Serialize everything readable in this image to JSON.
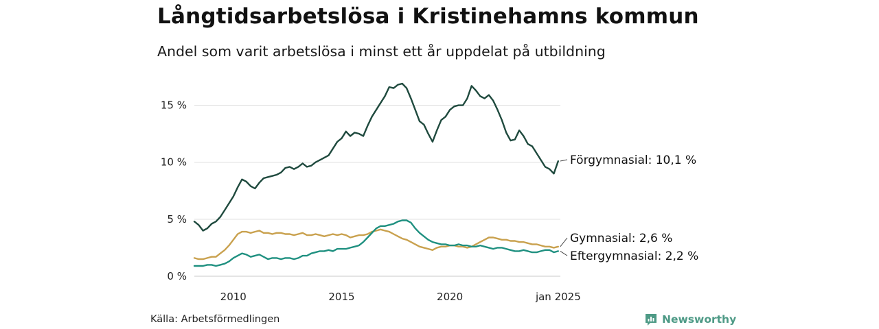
{
  "title": "Långtidsarbetslösa i Kristinehamns kommun",
  "subtitle": "Andel som varit arbetslösa i minst ett år uppdelat på utbildning",
  "source": "Källa: Arbetsförmedlingen",
  "brand": {
    "name": "Newsworthy",
    "icon": "newsworthy-logo-icon",
    "color": "#4e9a86"
  },
  "chart_data": {
    "type": "line",
    "title": "Långtidsarbetslösa i Kristinehamns kommun",
    "subtitle": "Andel som varit arbetslösa i minst ett år uppdelat på utbildning",
    "xlabel": "",
    "ylabel": "",
    "xlim": [
      2008.2,
      2025.1
    ],
    "ylim": [
      0,
      17.5
    ],
    "grid": true,
    "y_ticks": [
      0,
      5,
      10,
      15
    ],
    "y_tick_labels": [
      "0 %",
      "5 %",
      "10 %",
      "15 %"
    ],
    "x_ticks": [
      2010,
      2015,
      2020,
      2025.0
    ],
    "x_tick_labels": [
      "2010",
      "2015",
      "2020",
      "jan 2025"
    ],
    "series": [
      {
        "name": "Förgymnasial",
        "label": "Förgymnasial: 10,1 %",
        "color": "#1f4a3e",
        "points": [
          [
            2008.2,
            4.8
          ],
          [
            2008.4,
            4.5
          ],
          [
            2008.6,
            4.0
          ],
          [
            2008.8,
            4.2
          ],
          [
            2009.0,
            4.6
          ],
          [
            2009.2,
            4.8
          ],
          [
            2009.4,
            5.2
          ],
          [
            2009.6,
            5.8
          ],
          [
            2009.8,
            6.4
          ],
          [
            2010.0,
            7.0
          ],
          [
            2010.2,
            7.8
          ],
          [
            2010.4,
            8.5
          ],
          [
            2010.6,
            8.3
          ],
          [
            2010.8,
            7.9
          ],
          [
            2011.0,
            7.7
          ],
          [
            2011.2,
            8.2
          ],
          [
            2011.4,
            8.6
          ],
          [
            2011.6,
            8.7
          ],
          [
            2011.8,
            8.8
          ],
          [
            2012.0,
            8.9
          ],
          [
            2012.2,
            9.1
          ],
          [
            2012.4,
            9.5
          ],
          [
            2012.6,
            9.6
          ],
          [
            2012.8,
            9.4
          ],
          [
            2013.0,
            9.6
          ],
          [
            2013.2,
            9.9
          ],
          [
            2013.4,
            9.6
          ],
          [
            2013.6,
            9.7
          ],
          [
            2013.8,
            10.0
          ],
          [
            2014.0,
            10.2
          ],
          [
            2014.2,
            10.4
          ],
          [
            2014.4,
            10.6
          ],
          [
            2014.6,
            11.2
          ],
          [
            2014.8,
            11.8
          ],
          [
            2015.0,
            12.1
          ],
          [
            2015.2,
            12.7
          ],
          [
            2015.4,
            12.3
          ],
          [
            2015.6,
            12.6
          ],
          [
            2015.8,
            12.5
          ],
          [
            2016.0,
            12.3
          ],
          [
            2016.2,
            13.2
          ],
          [
            2016.4,
            14.0
          ],
          [
            2016.6,
            14.6
          ],
          [
            2016.8,
            15.2
          ],
          [
            2017.0,
            15.8
          ],
          [
            2017.2,
            16.6
          ],
          [
            2017.4,
            16.5
          ],
          [
            2017.6,
            16.8
          ],
          [
            2017.8,
            16.9
          ],
          [
            2018.0,
            16.5
          ],
          [
            2018.2,
            15.6
          ],
          [
            2018.4,
            14.6
          ],
          [
            2018.6,
            13.6
          ],
          [
            2018.8,
            13.3
          ],
          [
            2019.0,
            12.5
          ],
          [
            2019.2,
            11.8
          ],
          [
            2019.4,
            12.8
          ],
          [
            2019.6,
            13.7
          ],
          [
            2019.8,
            14.0
          ],
          [
            2020.0,
            14.6
          ],
          [
            2020.2,
            14.9
          ],
          [
            2020.4,
            15.0
          ],
          [
            2020.6,
            15.0
          ],
          [
            2020.8,
            15.6
          ],
          [
            2021.0,
            16.7
          ],
          [
            2021.2,
            16.3
          ],
          [
            2021.4,
            15.8
          ],
          [
            2021.6,
            15.6
          ],
          [
            2021.8,
            15.9
          ],
          [
            2022.0,
            15.4
          ],
          [
            2022.2,
            14.6
          ],
          [
            2022.4,
            13.7
          ],
          [
            2022.6,
            12.6
          ],
          [
            2022.8,
            11.9
          ],
          [
            2023.0,
            12.0
          ],
          [
            2023.2,
            12.8
          ],
          [
            2023.4,
            12.3
          ],
          [
            2023.6,
            11.6
          ],
          [
            2023.8,
            11.4
          ],
          [
            2024.0,
            10.8
          ],
          [
            2024.2,
            10.2
          ],
          [
            2024.4,
            9.6
          ],
          [
            2024.6,
            9.4
          ],
          [
            2024.8,
            9.0
          ],
          [
            2025.0,
            10.1
          ]
        ]
      },
      {
        "name": "Gymnasial",
        "label": "Gymnasial:  2,6 %",
        "color": "#c9a14e",
        "points": [
          [
            2008.2,
            1.6
          ],
          [
            2008.4,
            1.5
          ],
          [
            2008.6,
            1.5
          ],
          [
            2008.8,
            1.6
          ],
          [
            2009.0,
            1.7
          ],
          [
            2009.2,
            1.7
          ],
          [
            2009.4,
            2.0
          ],
          [
            2009.6,
            2.3
          ],
          [
            2009.8,
            2.7
          ],
          [
            2010.0,
            3.2
          ],
          [
            2010.2,
            3.7
          ],
          [
            2010.4,
            3.9
          ],
          [
            2010.6,
            3.9
          ],
          [
            2010.8,
            3.8
          ],
          [
            2011.0,
            3.9
          ],
          [
            2011.2,
            4.0
          ],
          [
            2011.4,
            3.8
          ],
          [
            2011.6,
            3.8
          ],
          [
            2011.8,
            3.7
          ],
          [
            2012.0,
            3.8
          ],
          [
            2012.2,
            3.8
          ],
          [
            2012.4,
            3.7
          ],
          [
            2012.6,
            3.7
          ],
          [
            2012.8,
            3.6
          ],
          [
            2013.0,
            3.7
          ],
          [
            2013.2,
            3.8
          ],
          [
            2013.4,
            3.6
          ],
          [
            2013.6,
            3.6
          ],
          [
            2013.8,
            3.7
          ],
          [
            2014.0,
            3.6
          ],
          [
            2014.2,
            3.5
          ],
          [
            2014.4,
            3.6
          ],
          [
            2014.6,
            3.7
          ],
          [
            2014.8,
            3.6
          ],
          [
            2015.0,
            3.7
          ],
          [
            2015.2,
            3.6
          ],
          [
            2015.4,
            3.4
          ],
          [
            2015.6,
            3.5
          ],
          [
            2015.8,
            3.6
          ],
          [
            2016.0,
            3.6
          ],
          [
            2016.2,
            3.7
          ],
          [
            2016.4,
            3.9
          ],
          [
            2016.6,
            4.0
          ],
          [
            2016.8,
            4.1
          ],
          [
            2017.0,
            4.0
          ],
          [
            2017.2,
            3.9
          ],
          [
            2017.4,
            3.7
          ],
          [
            2017.6,
            3.5
          ],
          [
            2017.8,
            3.3
          ],
          [
            2018.0,
            3.2
          ],
          [
            2018.2,
            3.0
          ],
          [
            2018.4,
            2.8
          ],
          [
            2018.6,
            2.6
          ],
          [
            2018.8,
            2.5
          ],
          [
            2019.0,
            2.4
          ],
          [
            2019.2,
            2.3
          ],
          [
            2019.4,
            2.5
          ],
          [
            2019.6,
            2.6
          ],
          [
            2019.8,
            2.6
          ],
          [
            2020.0,
            2.7
          ],
          [
            2020.2,
            2.7
          ],
          [
            2020.4,
            2.6
          ],
          [
            2020.6,
            2.6
          ],
          [
            2020.8,
            2.5
          ],
          [
            2021.0,
            2.6
          ],
          [
            2021.2,
            2.8
          ],
          [
            2021.4,
            3.0
          ],
          [
            2021.6,
            3.2
          ],
          [
            2021.8,
            3.4
          ],
          [
            2022.0,
            3.4
          ],
          [
            2022.2,
            3.3
          ],
          [
            2022.4,
            3.2
          ],
          [
            2022.6,
            3.2
          ],
          [
            2022.8,
            3.1
          ],
          [
            2023.0,
            3.1
          ],
          [
            2023.2,
            3.0
          ],
          [
            2023.4,
            3.0
          ],
          [
            2023.6,
            2.9
          ],
          [
            2023.8,
            2.8
          ],
          [
            2024.0,
            2.8
          ],
          [
            2024.2,
            2.7
          ],
          [
            2024.4,
            2.6
          ],
          [
            2024.6,
            2.6
          ],
          [
            2024.8,
            2.5
          ],
          [
            2025.0,
            2.6
          ]
        ]
      },
      {
        "name": "Eftergymnasial",
        "label": "Eftergymnasial:  2,2 %",
        "color": "#1f9080",
        "points": [
          [
            2008.2,
            0.9
          ],
          [
            2008.4,
            0.9
          ],
          [
            2008.6,
            0.9
          ],
          [
            2008.8,
            1.0
          ],
          [
            2009.0,
            1.0
          ],
          [
            2009.2,
            0.9
          ],
          [
            2009.4,
            1.0
          ],
          [
            2009.6,
            1.1
          ],
          [
            2009.8,
            1.3
          ],
          [
            2010.0,
            1.6
          ],
          [
            2010.2,
            1.8
          ],
          [
            2010.4,
            2.0
          ],
          [
            2010.6,
            1.9
          ],
          [
            2010.8,
            1.7
          ],
          [
            2011.0,
            1.8
          ],
          [
            2011.2,
            1.9
          ],
          [
            2011.4,
            1.7
          ],
          [
            2011.6,
            1.5
          ],
          [
            2011.8,
            1.6
          ],
          [
            2012.0,
            1.6
          ],
          [
            2012.2,
            1.5
          ],
          [
            2012.4,
            1.6
          ],
          [
            2012.6,
            1.6
          ],
          [
            2012.8,
            1.5
          ],
          [
            2013.0,
            1.6
          ],
          [
            2013.2,
            1.8
          ],
          [
            2013.4,
            1.8
          ],
          [
            2013.6,
            2.0
          ],
          [
            2013.8,
            2.1
          ],
          [
            2014.0,
            2.2
          ],
          [
            2014.2,
            2.2
          ],
          [
            2014.4,
            2.3
          ],
          [
            2014.6,
            2.2
          ],
          [
            2014.8,
            2.4
          ],
          [
            2015.0,
            2.4
          ],
          [
            2015.2,
            2.4
          ],
          [
            2015.4,
            2.5
          ],
          [
            2015.6,
            2.6
          ],
          [
            2015.8,
            2.7
          ],
          [
            2016.0,
            3.0
          ],
          [
            2016.2,
            3.4
          ],
          [
            2016.4,
            3.8
          ],
          [
            2016.6,
            4.2
          ],
          [
            2016.8,
            4.4
          ],
          [
            2017.0,
            4.4
          ],
          [
            2017.2,
            4.5
          ],
          [
            2017.4,
            4.6
          ],
          [
            2017.6,
            4.8
          ],
          [
            2017.8,
            4.9
          ],
          [
            2018.0,
            4.9
          ],
          [
            2018.2,
            4.7
          ],
          [
            2018.4,
            4.2
          ],
          [
            2018.6,
            3.8
          ],
          [
            2018.8,
            3.5
          ],
          [
            2019.0,
            3.2
          ],
          [
            2019.2,
            3.0
          ],
          [
            2019.4,
            2.9
          ],
          [
            2019.6,
            2.8
          ],
          [
            2019.8,
            2.8
          ],
          [
            2020.0,
            2.7
          ],
          [
            2020.2,
            2.7
          ],
          [
            2020.4,
            2.8
          ],
          [
            2020.6,
            2.7
          ],
          [
            2020.8,
            2.7
          ],
          [
            2021.0,
            2.6
          ],
          [
            2021.2,
            2.6
          ],
          [
            2021.4,
            2.7
          ],
          [
            2021.6,
            2.6
          ],
          [
            2021.8,
            2.5
          ],
          [
            2022.0,
            2.4
          ],
          [
            2022.2,
            2.5
          ],
          [
            2022.4,
            2.5
          ],
          [
            2022.6,
            2.4
          ],
          [
            2022.8,
            2.3
          ],
          [
            2023.0,
            2.2
          ],
          [
            2023.2,
            2.2
          ],
          [
            2023.4,
            2.3
          ],
          [
            2023.6,
            2.2
          ],
          [
            2023.8,
            2.1
          ],
          [
            2024.0,
            2.1
          ],
          [
            2024.2,
            2.2
          ],
          [
            2024.4,
            2.3
          ],
          [
            2024.6,
            2.3
          ],
          [
            2024.8,
            2.1
          ],
          [
            2025.0,
            2.2
          ]
        ]
      }
    ]
  }
}
